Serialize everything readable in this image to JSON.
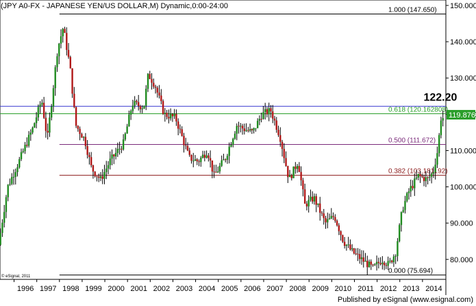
{
  "chart_data": {
    "type": "candlestick",
    "title": "(JPY A0-FX - JAPANESE YEN/US DOLLAR,M) Dynamic,0:00-24:00",
    "x_ticks": [
      "1996",
      "1997",
      "1998",
      "1999",
      "2000",
      "2001",
      "2002",
      "2003",
      "2004",
      "2005",
      "2006",
      "2007",
      "2008",
      "2009",
      "2010",
      "2011",
      "2012",
      "2013",
      "2014"
    ],
    "y_ticks": [
      "80.000",
      "90.000",
      "100.000",
      "110.000",
      "120.000",
      "130.000",
      "140.000",
      "150.000"
    ],
    "ylim": [
      74.5,
      151.5
    ],
    "xlim": [
      1995.38,
      2015.03
    ],
    "grid": false,
    "fib_levels": [
      {
        "label": "1.000 (147.650)",
        "value": 147.65,
        "x_start": 1998.0,
        "color": "#000000"
      },
      {
        "label": "0.618 (120.162808)",
        "value": 120.163,
        "x_start": 1995.38,
        "color": "#2a9e2a"
      },
      {
        "label": "0.500 (111.672)",
        "value": 111.672,
        "x_start": 1998.0,
        "color": "#7a2a7a"
      },
      {
        "label": "0.382 (103.181192)",
        "value": 103.181,
        "x_start": 1998.0,
        "color": "#8b1a1a"
      },
      {
        "label": "0.000 (75.694)",
        "value": 75.694,
        "x_start": 1998.0,
        "color": "#000000"
      }
    ],
    "h_line": {
      "value": 122.2,
      "color": "#3b3bd1"
    },
    "annotation": {
      "text": "122.20",
      "x": 2014.35,
      "y": 122.2
    },
    "price_tag": {
      "text": "119.876",
      "value": 119.876,
      "color": "#2a9e2a"
    },
    "watermark": "© eSignal, 2011",
    "anchors": [
      {
        "x": 1995.4,
        "y": 84
      },
      {
        "x": 1995.8,
        "y": 100
      },
      {
        "x": 1996.3,
        "y": 107
      },
      {
        "x": 1996.9,
        "y": 116
      },
      {
        "x": 1997.3,
        "y": 124
      },
      {
        "x": 1997.55,
        "y": 113
      },
      {
        "x": 1998.0,
        "y": 138
      },
      {
        "x": 1998.25,
        "y": 144
      },
      {
        "x": 1998.55,
        "y": 133
      },
      {
        "x": 1998.8,
        "y": 117
      },
      {
        "x": 1999.2,
        "y": 113
      },
      {
        "x": 1999.5,
        "y": 105
      },
      {
        "x": 1999.9,
        "y": 102
      },
      {
        "x": 2000.3,
        "y": 107
      },
      {
        "x": 2000.9,
        "y": 112
      },
      {
        "x": 2001.3,
        "y": 123
      },
      {
        "x": 2001.8,
        "y": 122
      },
      {
        "x": 2002.0,
        "y": 131
      },
      {
        "x": 2002.3,
        "y": 128
      },
      {
        "x": 2002.7,
        "y": 120
      },
      {
        "x": 2003.2,
        "y": 119
      },
      {
        "x": 2003.8,
        "y": 108
      },
      {
        "x": 2004.2,
        "y": 107
      },
      {
        "x": 2004.6,
        "y": 110
      },
      {
        "x": 2004.9,
        "y": 103
      },
      {
        "x": 2005.4,
        "y": 108
      },
      {
        "x": 2005.9,
        "y": 117
      },
      {
        "x": 2006.2,
        "y": 116
      },
      {
        "x": 2006.6,
        "y": 115
      },
      {
        "x": 2007.0,
        "y": 120
      },
      {
        "x": 2007.4,
        "y": 121
      },
      {
        "x": 2007.8,
        "y": 114
      },
      {
        "x": 2008.2,
        "y": 102
      },
      {
        "x": 2008.6,
        "y": 107
      },
      {
        "x": 2008.9,
        "y": 95
      },
      {
        "x": 2009.3,
        "y": 97
      },
      {
        "x": 2009.8,
        "y": 90
      },
      {
        "x": 2010.2,
        "y": 92
      },
      {
        "x": 2010.6,
        "y": 85
      },
      {
        "x": 2011.0,
        "y": 82
      },
      {
        "x": 2011.4,
        "y": 80
      },
      {
        "x": 2011.9,
        "y": 77.5
      },
      {
        "x": 2012.3,
        "y": 80
      },
      {
        "x": 2012.6,
        "y": 78.5
      },
      {
        "x": 2012.9,
        "y": 82
      },
      {
        "x": 2013.2,
        "y": 94
      },
      {
        "x": 2013.5,
        "y": 99
      },
      {
        "x": 2013.9,
        "y": 103
      },
      {
        "x": 2014.3,
        "y": 102
      },
      {
        "x": 2014.55,
        "y": 104
      },
      {
        "x": 2014.75,
        "y": 110
      },
      {
        "x": 2014.9,
        "y": 119
      }
    ]
  },
  "footer": {
    "published": "Published by eSignal (www.esignal.com)"
  }
}
